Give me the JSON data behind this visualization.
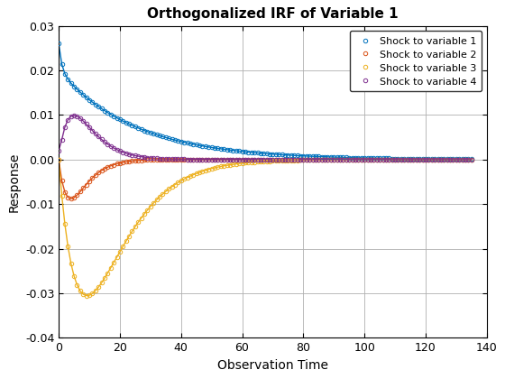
{
  "title": "Orthogonalized IRF of Variable 1",
  "xlabel": "Observation Time",
  "ylabel": "Response",
  "xlim": [
    0,
    140
  ],
  "ylim": [
    -0.04,
    0.03
  ],
  "yticks": [
    -0.04,
    -0.03,
    -0.02,
    -0.01,
    0.0,
    0.01,
    0.02,
    0.03
  ],
  "xticks": [
    0,
    20,
    40,
    60,
    80,
    100,
    120,
    140
  ],
  "series": [
    {
      "label": "Shock to variable 1",
      "color": "#0072BD"
    },
    {
      "label": "Shock to variable 2",
      "color": "#D95319"
    },
    {
      "label": "Shock to variable 3",
      "color": "#EDB120"
    },
    {
      "label": "Shock to variable 4",
      "color": "#7E2F8E"
    }
  ],
  "background_color": "#ffffff",
  "grid_color": "#b0b0b0",
  "title_fontsize": 11,
  "label_fontsize": 10,
  "tick_fontsize": 9,
  "n_points": 136
}
